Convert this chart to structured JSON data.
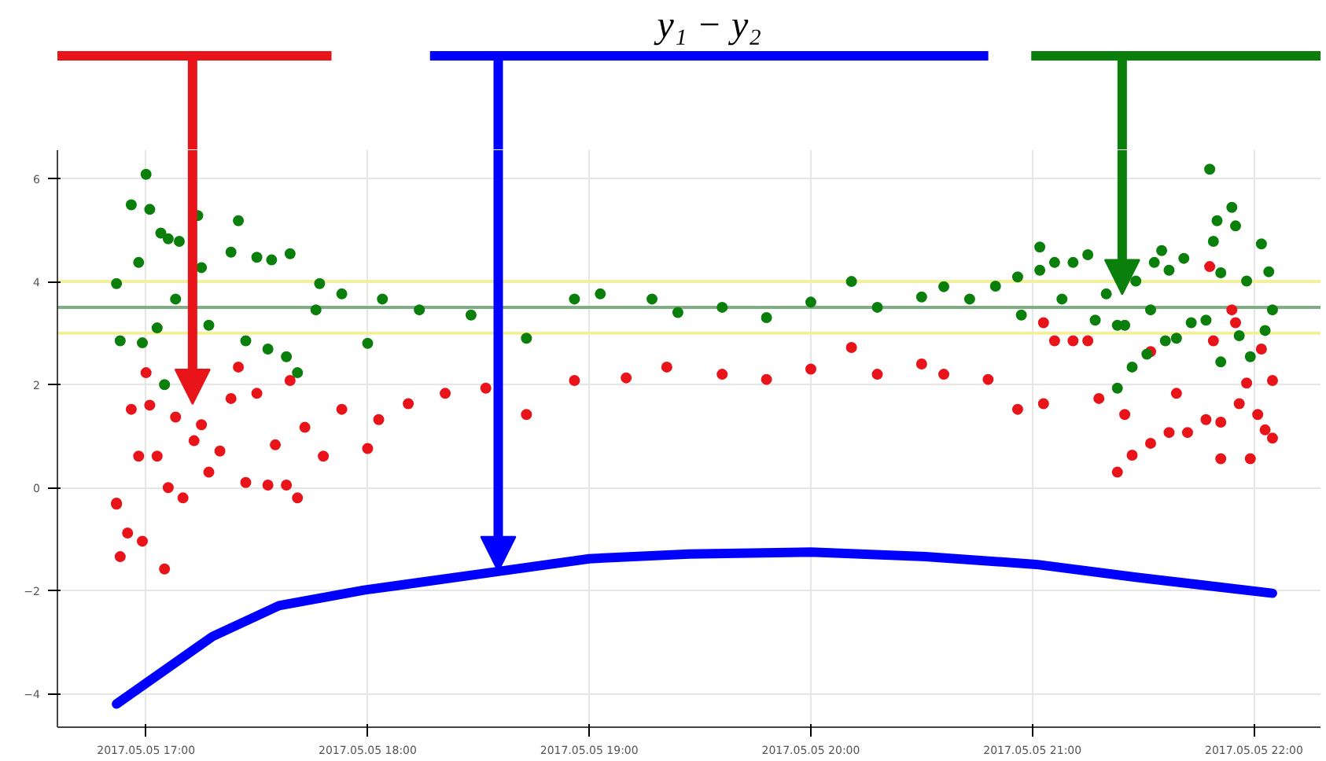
{
  "chart_data": {
    "type": "scatter",
    "annotations": [
      "y₁ − y₂"
    ],
    "xlim": [
      "2017-05-05T16:36",
      "2017-05-05T22:18"
    ],
    "ylim": [
      -4.65,
      6.55
    ],
    "xticks": [
      {
        "value": "2017-05-05T17:00",
        "label": "2017.05.05 17:00"
      },
      {
        "value": "2017-05-05T18:00",
        "label": "2017.05.05 18:00"
      },
      {
        "value": "2017-05-05T19:00",
        "label": "2017.05.05 19:00"
      },
      {
        "value": "2017-05-05T20:00",
        "label": "2017.05.05 20:00"
      },
      {
        "value": "2017-05-05T21:00",
        "label": "2017.05.05 21:00"
      },
      {
        "value": "2017-05-05T22:00",
        "label": "2017.05.05 22:00"
      }
    ],
    "yticks": [
      -4,
      -2,
      0,
      2,
      4,
      6
    ],
    "grid": true,
    "marker": "circle",
    "ref_lines": [
      {
        "axis": "y",
        "value": 4,
        "label": null,
        "color": "#f2f09a"
      },
      {
        "axis": "y",
        "value": 3,
        "label": null,
        "color": "#f2f09a"
      },
      {
        "axis": "y",
        "value": 3.5,
        "label": null,
        "color": "#7fae84"
      }
    ],
    "series": [
      {
        "color": "#e8141a",
        "x": [
          "2017-05-05T16:52",
          "2017-05-05T16:53",
          "2017-05-05T16:55",
          "2017-05-05T16:59",
          "2017-05-05T17:05",
          "2017-05-05T16:52",
          "2017-05-05T16:56",
          "2017-05-05T16:58",
          "2017-05-05T17:00",
          "2017-05-05T17:01",
          "2017-05-05T17:03",
          "2017-05-05T17:06",
          "2017-05-05T17:08",
          "2017-05-05T17:10",
          "2017-05-05T17:13",
          "2017-05-05T17:15",
          "2017-05-05T17:17",
          "2017-05-05T17:20",
          "2017-05-05T17:23",
          "2017-05-05T17:25",
          "2017-05-05T17:27",
          "2017-05-05T17:30",
          "2017-05-05T17:33",
          "2017-05-05T17:35",
          "2017-05-05T17:38",
          "2017-05-05T17:39",
          "2017-05-05T17:41",
          "2017-05-05T17:43",
          "2017-05-05T17:48",
          "2017-05-05T17:53",
          "2017-05-05T18:00",
          "2017-05-05T18:03",
          "2017-05-05T18:11",
          "2017-05-05T18:21",
          "2017-05-05T18:32",
          "2017-05-05T18:43",
          "2017-05-05T18:56",
          "2017-05-05T19:10",
          "2017-05-05T19:21",
          "2017-05-05T19:36",
          "2017-05-05T19:48",
          "2017-05-05T20:00",
          "2017-05-05T20:11",
          "2017-05-05T20:18",
          "2017-05-05T20:30",
          "2017-05-05T20:36",
          "2017-05-05T20:48",
          "2017-05-05T20:56",
          "2017-05-05T21:03",
          "2017-05-05T21:03",
          "2017-05-05T21:06",
          "2017-05-05T21:11",
          "2017-05-05T21:15",
          "2017-05-05T21:18",
          "2017-05-05T21:23",
          "2017-05-05T21:27",
          "2017-05-05T21:25",
          "2017-05-05T21:32",
          "2017-05-05T21:32",
          "2017-05-05T21:37",
          "2017-05-05T21:39",
          "2017-05-05T21:42",
          "2017-05-05T21:47",
          "2017-05-05T21:48",
          "2017-05-05T21:49",
          "2017-05-05T21:51",
          "2017-05-05T21:51",
          "2017-05-05T21:54",
          "2017-05-05T21:55",
          "2017-05-05T21:56",
          "2017-05-05T21:58",
          "2017-05-05T21:59",
          "2017-05-05T22:01",
          "2017-05-05T22:02",
          "2017-05-05T22:03",
          "2017-05-05T22:05",
          "2017-05-05T22:05"
        ],
        "values": [
          -0.32,
          -1.34,
          -0.88,
          -1.04,
          -1.58,
          -0.3,
          1.52,
          0.61,
          2.23,
          1.6,
          0.61,
          0,
          1.37,
          -0.2,
          0.91,
          1.22,
          0.3,
          0.71,
          1.73,
          2.34,
          0.1,
          1.83,
          0.05,
          0.83,
          0.05,
          2.08,
          -0.2,
          1.17,
          0.61,
          1.52,
          0.76,
          1.32,
          1.63,
          1.83,
          1.93,
          1.42,
          2.08,
          2.13,
          2.34,
          2.2,
          2.1,
          2.3,
          2.72,
          2.2,
          2.4,
          2.2,
          2.1,
          1.52,
          1.63,
          3.2,
          2.85,
          2.85,
          2.85,
          1.73,
          0.3,
          0.63,
          1.42,
          0.86,
          2.64,
          1.07,
          1.83,
          1.07,
          1.32,
          4.29,
          2.85,
          0.56,
          1.27,
          3.45,
          3.2,
          1.63,
          2.03,
          0.56,
          1.42,
          2.69,
          1.12,
          0.96,
          2.08
        ]
      },
      {
        "color": "#0b7f0b",
        "x": [
          "2017-05-05T16:52",
          "2017-05-05T16:53",
          "2017-05-05T16:56",
          "2017-05-05T17:00",
          "2017-05-05T17:01",
          "2017-05-05T16:58",
          "2017-05-05T16:59",
          "2017-05-05T17:03",
          "2017-05-05T17:04",
          "2017-05-05T17:05",
          "2017-05-05T17:06",
          "2017-05-05T17:09",
          "2017-05-05T17:14",
          "2017-05-05T17:08",
          "2017-05-05T17:15",
          "2017-05-05T17:17",
          "2017-05-05T17:23",
          "2017-05-05T17:25",
          "2017-05-05T17:27",
          "2017-05-05T17:30",
          "2017-05-05T17:33",
          "2017-05-05T17:34",
          "2017-05-05T17:38",
          "2017-05-05T17:39",
          "2017-05-05T17:41",
          "2017-05-05T17:46",
          "2017-05-05T17:47",
          "2017-05-05T17:53",
          "2017-05-05T18:00",
          "2017-05-05T18:04",
          "2017-05-05T18:14",
          "2017-05-05T18:28",
          "2017-05-05T18:43",
          "2017-05-05T18:56",
          "2017-05-05T19:03",
          "2017-05-05T19:17",
          "2017-05-05T19:24",
          "2017-05-05T19:36",
          "2017-05-05T19:48",
          "2017-05-05T20:00",
          "2017-05-05T20:11",
          "2017-05-05T20:18",
          "2017-05-05T20:30",
          "2017-05-05T20:36",
          "2017-05-05T20:43",
          "2017-05-05T20:50",
          "2017-05-05T20:56",
          "2017-05-05T20:57",
          "2017-05-05T21:02",
          "2017-05-05T21:02",
          "2017-05-05T21:06",
          "2017-05-05T21:08",
          "2017-05-05T21:11",
          "2017-05-05T21:15",
          "2017-05-05T21:17",
          "2017-05-05T21:20",
          "2017-05-05T21:23",
          "2017-05-05T21:23",
          "2017-05-05T21:25",
          "2017-05-05T21:27",
          "2017-05-05T21:28",
          "2017-05-05T21:31",
          "2017-05-05T21:32",
          "2017-05-05T21:33",
          "2017-05-05T21:35",
          "2017-05-05T21:36",
          "2017-05-05T21:37",
          "2017-05-05T21:39",
          "2017-05-05T21:41",
          "2017-05-05T21:43",
          "2017-05-05T21:47",
          "2017-05-05T21:48",
          "2017-05-05T21:49",
          "2017-05-05T21:50",
          "2017-05-05T21:51",
          "2017-05-05T21:51",
          "2017-05-05T21:54",
          "2017-05-05T21:55",
          "2017-05-05T21:56",
          "2017-05-05T21:58",
          "2017-05-05T21:59",
          "2017-05-05T22:02",
          "2017-05-05T22:03",
          "2017-05-05T22:04",
          "2017-05-05T22:05"
        ],
        "values": [
          3.96,
          2.85,
          5.49,
          6.08,
          5.4,
          4.37,
          2.81,
          3.1,
          4.94,
          2.0,
          4.83,
          4.78,
          5.28,
          3.66,
          4.27,
          3.15,
          4.57,
          5.18,
          2.85,
          4.47,
          2.69,
          4.42,
          2.54,
          4.54,
          2.23,
          3.45,
          3.96,
          3.76,
          2.8,
          3.66,
          3.45,
          3.35,
          2.9,
          3.66,
          3.76,
          3.66,
          3.4,
          3.5,
          3.3,
          3.6,
          4.0,
          3.5,
          3.7,
          3.9,
          3.66,
          3.91,
          4.09,
          3.35,
          4.22,
          4.67,
          4.37,
          3.66,
          4.37,
          4.52,
          3.25,
          3.76,
          3.15,
          1.93,
          3.15,
          2.34,
          4.01,
          2.59,
          3.45,
          4.37,
          4.6,
          2.85,
          4.22,
          2.9,
          4.45,
          3.2,
          3.25,
          6.18,
          4.78,
          5.18,
          2.44,
          4.17,
          5.44,
          5.08,
          2.95,
          4.01,
          2.54,
          4.73,
          3.05,
          4.19,
          3.45
        ]
      },
      {
        "type": "line",
        "color": "#0000ff",
        "marker": "none",
        "x": [
          "2017-05-05T16:52",
          "2017-05-05T17:18",
          "2017-05-05T17:36",
          "2017-05-05T17:59",
          "2017-05-05T18:35",
          "2017-05-05T19:00",
          "2017-05-05T19:27",
          "2017-05-05T20:00",
          "2017-05-05T20:31",
          "2017-05-05T21:01",
          "2017-05-05T21:28",
          "2017-05-05T22:05"
        ],
        "values": [
          -4.2,
          -2.89,
          -2.29,
          -1.99,
          -1.63,
          -1.38,
          -1.29,
          -1.25,
          -1.34,
          -1.49,
          -1.74,
          -2.05
        ]
      }
    ]
  }
}
